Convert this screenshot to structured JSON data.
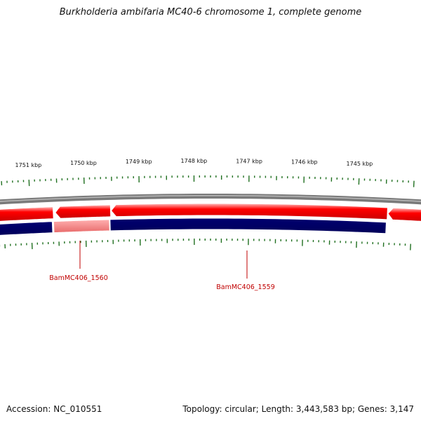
{
  "title": "Burkholderia ambifaria MC40-6 chromosome 1, complete genome",
  "footer": {
    "accession": "Accession: NC_010551",
    "summary": "Topology: circular; Length: 3,443,583 bp; Genes: 3,147"
  },
  "ruler": {
    "unit": "kbp",
    "labels": [
      "1751 kbp",
      "1750 kbp",
      "1749 kbp",
      "1748 kbp",
      "1747 kbp",
      "1746 kbp",
      "1745 kbp"
    ]
  },
  "genes": [
    {
      "id": "BamMC406_1560"
    },
    {
      "id": "BamMC406_1559"
    }
  ],
  "colors": {
    "forward": "#ff0000",
    "reverse": "#000080",
    "reverse_highlight": "#f08080",
    "backbone": "#808080",
    "ticks": "#207020",
    "gene_label": "#c00000"
  }
}
